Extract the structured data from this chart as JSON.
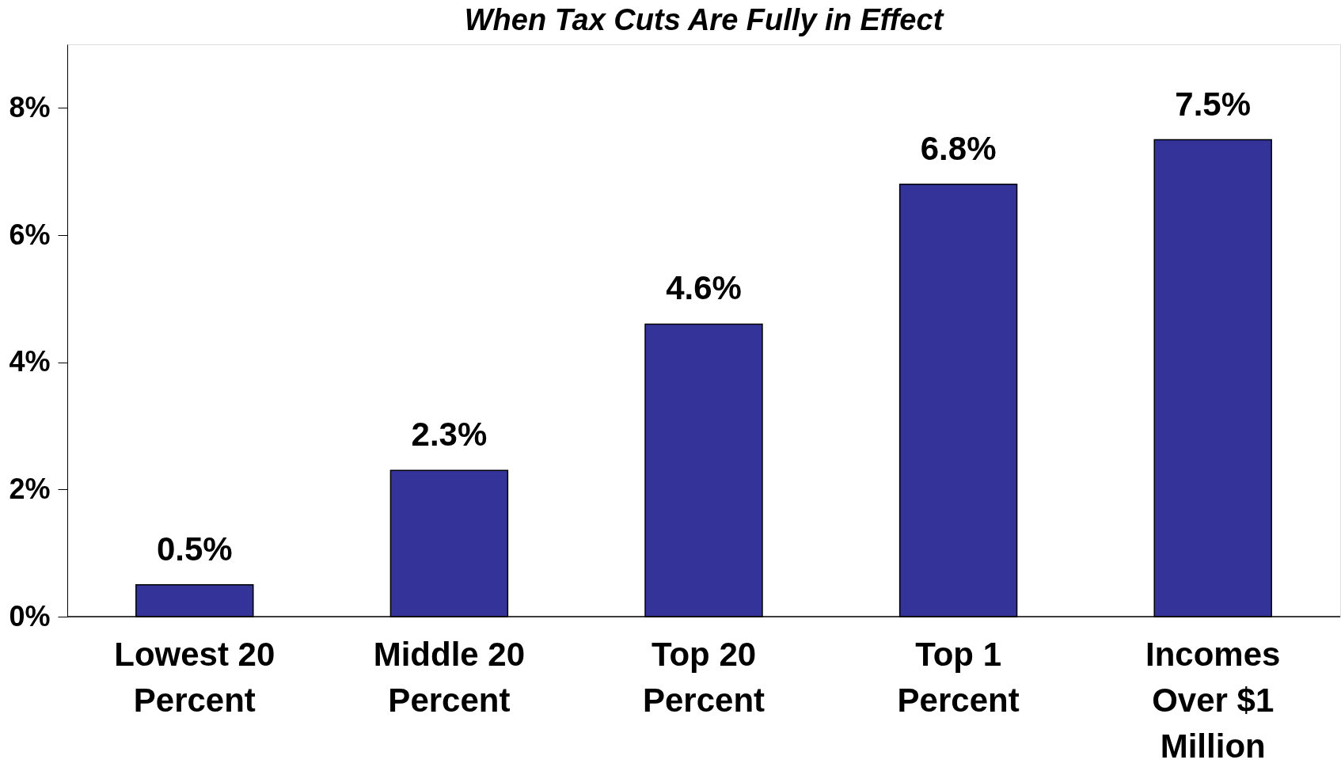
{
  "chart_data": {
    "type": "bar",
    "title": "When Tax Cuts Are Fully in Effect",
    "categories": [
      "Lowest 20\nPercent",
      "Middle 20\nPercent",
      "Top 20\nPercent",
      "Top 1\nPercent",
      "Incomes\nOver $1\nMillion"
    ],
    "values": [
      0.5,
      2.3,
      4.6,
      6.8,
      7.5
    ],
    "color": "#333399",
    "value_labels": [
      "0.5%",
      "2.3%",
      "4.6%",
      "6.8%",
      "7.5%"
    ],
    "ylim": [
      0,
      9
    ],
    "yticks": [
      {
        "value": 0,
        "label": "0%"
      },
      {
        "value": 2,
        "label": "2%"
      },
      {
        "value": 4,
        "label": "4%"
      },
      {
        "value": 6,
        "label": "6%"
      },
      {
        "value": 8,
        "label": "8%"
      }
    ],
    "grid": false
  }
}
